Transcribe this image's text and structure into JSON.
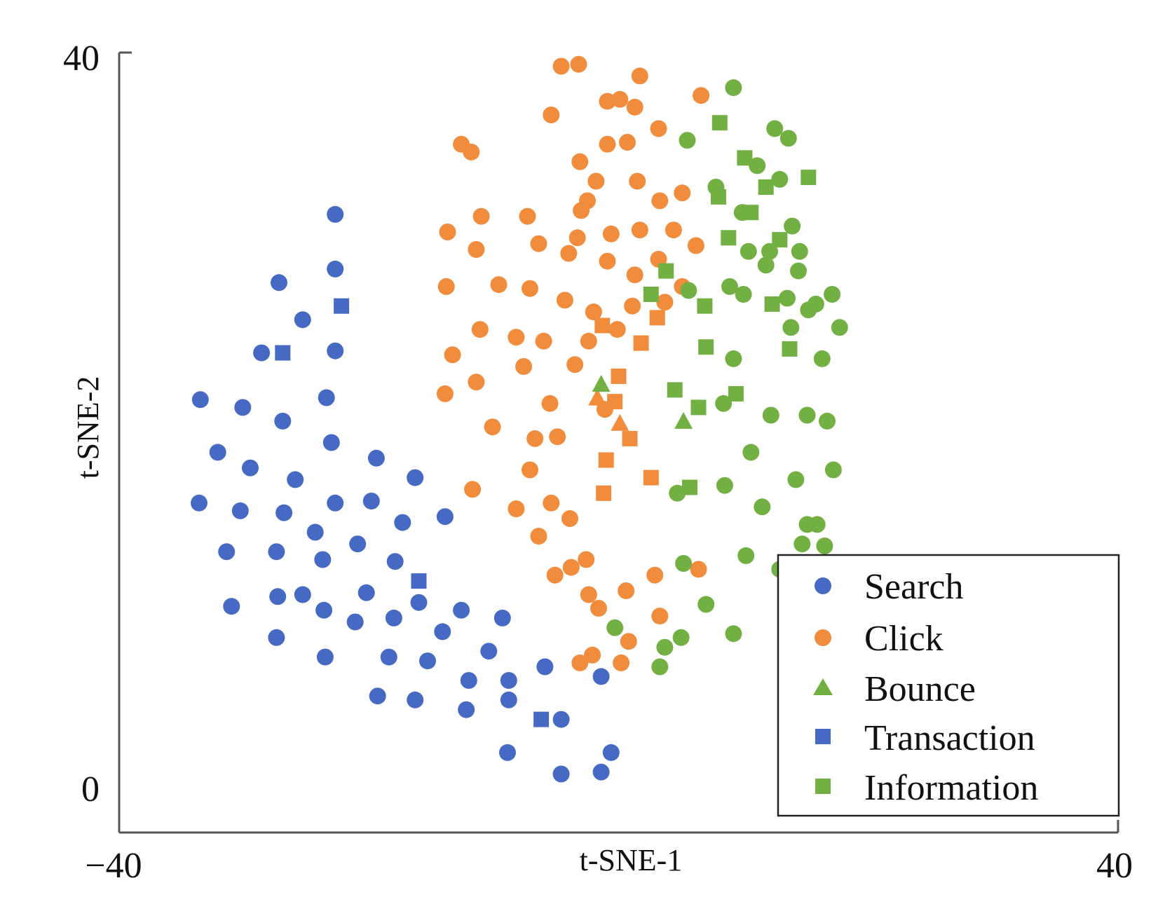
{
  "chart_data": {
    "type": "scatter",
    "xlabel": "t-SNE-1",
    "ylabel": "t-SNE-2",
    "xlim": [
      -40,
      40
    ],
    "ylim": [
      0,
      40
    ],
    "x_ticks": [
      "−40",
      "40"
    ],
    "y_ticks": [
      "40",
      "0"
    ],
    "legend_position": "bottom-right",
    "legend": [
      "Search",
      "Click",
      "Bounce",
      "Transaction",
      "Information"
    ],
    "colors": {
      "blue": "#4669c4",
      "orange": "#f08c3c",
      "green": "#72b043"
    },
    "series": [
      {
        "name": "Search",
        "marker": "circle",
        "color": "#4669c4",
        "points": [
          [
            -22.7,
            31.7
          ],
          [
            -27.2,
            28.2
          ],
          [
            -22.7,
            28.9
          ],
          [
            -25.3,
            26.3
          ],
          [
            -28.6,
            24.6
          ],
          [
            -22.7,
            24.7
          ],
          [
            -33.5,
            22.2
          ],
          [
            -23.4,
            22.3
          ],
          [
            -30.1,
            21.8
          ],
          [
            -26.9,
            21.1
          ],
          [
            -32.1,
            19.5
          ],
          [
            -23.0,
            20.0
          ],
          [
            -19.4,
            19.2
          ],
          [
            -29.5,
            18.7
          ],
          [
            -25.9,
            18.1
          ],
          [
            -16.3,
            18.2
          ],
          [
            -33.6,
            16.9
          ],
          [
            -30.3,
            16.5
          ],
          [
            -26.8,
            16.4
          ],
          [
            -22.7,
            16.9
          ],
          [
            -19.8,
            17.0
          ],
          [
            -13.9,
            16.2
          ],
          [
            -17.3,
            15.9
          ],
          [
            -24.3,
            15.4
          ],
          [
            -20.9,
            14.8
          ],
          [
            -31.4,
            14.4
          ],
          [
            -27.4,
            14.4
          ],
          [
            -23.7,
            14.0
          ],
          [
            -17.9,
            13.9
          ],
          [
            -25.3,
            12.2
          ],
          [
            -20.2,
            12.3
          ],
          [
            -27.3,
            12.1
          ],
          [
            -31.0,
            11.6
          ],
          [
            -16.0,
            11.8
          ],
          [
            -12.6,
            11.4
          ],
          [
            -9.3,
            11.0
          ],
          [
            -23.6,
            11.4
          ],
          [
            -18.0,
            11.0
          ],
          [
            -21.1,
            10.8
          ],
          [
            -27.4,
            10.0
          ],
          [
            -14.1,
            10.3
          ],
          [
            -10.4,
            9.3
          ],
          [
            -23.5,
            9.0
          ],
          [
            -18.4,
            9.0
          ],
          [
            -15.3,
            8.8
          ],
          [
            -5.9,
            8.5
          ],
          [
            -12.0,
            7.8
          ],
          [
            -8.8,
            7.8
          ],
          [
            -1.4,
            8.0
          ],
          [
            -19.3,
            7.0
          ],
          [
            -16.3,
            6.8
          ],
          [
            -12.2,
            6.3
          ],
          [
            -8.8,
            6.8
          ],
          [
            -4.6,
            5.8
          ],
          [
            -8.9,
            4.1
          ],
          [
            -4.6,
            3.0
          ],
          [
            -0.6,
            4.1
          ],
          [
            -1.4,
            3.1
          ]
        ]
      },
      {
        "name": "Click",
        "marker": "circle",
        "color": "#f08c3c",
        "points": [
          [
            -4.6,
            39.3
          ],
          [
            -3.2,
            39.4
          ],
          [
            1.7,
            38.8
          ],
          [
            0.1,
            37.6
          ],
          [
            -0.9,
            37.5
          ],
          [
            1.3,
            37.2
          ],
          [
            6.6,
            37.8
          ],
          [
            3.2,
            36.1
          ],
          [
            -11.8,
            34.9
          ],
          [
            -3.1,
            34.4
          ],
          [
            -0.9,
            35.3
          ],
          [
            0.7,
            35.4
          ],
          [
            -12.6,
            35.3
          ],
          [
            -5.4,
            36.8
          ],
          [
            -1.8,
            33.4
          ],
          [
            1.5,
            33.4
          ],
          [
            5.1,
            32.8
          ],
          [
            -2.5,
            32.4
          ],
          [
            3.3,
            32.4
          ],
          [
            -11.0,
            31.6
          ],
          [
            -7.3,
            31.6
          ],
          [
            -3.0,
            31.9
          ],
          [
            -0.6,
            30.7
          ],
          [
            1.7,
            30.9
          ],
          [
            4.4,
            30.9
          ],
          [
            6.2,
            30.1
          ],
          [
            -13.7,
            30.8
          ],
          [
            -3.3,
            30.5
          ],
          [
            -6.4,
            30.2
          ],
          [
            -11.4,
            29.9
          ],
          [
            -4.0,
            29.7
          ],
          [
            -0.9,
            29.3
          ],
          [
            1.3,
            28.6
          ],
          [
            3.2,
            29.4
          ],
          [
            5.1,
            28.0
          ],
          [
            -13.8,
            28.0
          ],
          [
            -9.6,
            28.1
          ],
          [
            -7.1,
            27.9
          ],
          [
            -4.3,
            27.3
          ],
          [
            -2.0,
            26.7
          ],
          [
            1.1,
            27.0
          ],
          [
            3.7,
            27.2
          ],
          [
            -0.1,
            25.8
          ],
          [
            -11.1,
            25.8
          ],
          [
            -8.2,
            25.4
          ],
          [
            -6.0,
            25.2
          ],
          [
            -2.4,
            25.2
          ],
          [
            -13.3,
            24.5
          ],
          [
            -3.5,
            24.0
          ],
          [
            -7.6,
            23.9
          ],
          [
            -11.4,
            23.1
          ],
          [
            -13.9,
            22.5
          ],
          [
            -5.5,
            22.0
          ],
          [
            -1.1,
            21.7
          ],
          [
            -10.1,
            20.8
          ],
          [
            -6.7,
            20.2
          ],
          [
            -4.9,
            20.3
          ],
          [
            -7.1,
            18.6
          ],
          [
            -11.7,
            17.6
          ],
          [
            -5.4,
            16.9
          ],
          [
            -8.2,
            16.6
          ],
          [
            -3.9,
            16.1
          ],
          [
            -6.4,
            15.2
          ],
          [
            -2.6,
            14.0
          ],
          [
            -3.8,
            13.6
          ],
          [
            -5.1,
            13.2
          ],
          [
            -2.4,
            12.2
          ],
          [
            2.9,
            13.2
          ],
          [
            6.4,
            13.5
          ],
          [
            0.6,
            12.4
          ],
          [
            -1.6,
            11.5
          ],
          [
            3.3,
            11.1
          ],
          [
            0.8,
            9.8
          ],
          [
            -2.1,
            9.1
          ],
          [
            -3.1,
            8.7
          ],
          [
            0.2,
            8.7
          ]
        ]
      },
      {
        "name": "Bounce",
        "marker": "triangle",
        "color": "#f08c3c",
        "points": [
          [
            -1.7,
            22.3
          ],
          [
            0.1,
            21.0
          ]
        ]
      },
      {
        "name": "Bounce",
        "marker": "triangle",
        "color": "#72b043",
        "points": [
          [
            -1.4,
            23.0
          ],
          [
            5.2,
            21.1
          ]
        ]
      },
      {
        "name": "Transaction",
        "marker": "square",
        "color": "#4669c4",
        "points": [
          [
            -22.2,
            27.0
          ],
          [
            -26.9,
            24.6
          ],
          [
            -16.0,
            12.9
          ],
          [
            -6.2,
            5.8
          ]
        ]
      },
      {
        "name": "Transaction",
        "marker": "square",
        "color": "#f08c3c",
        "points": [
          [
            3.1,
            26.4
          ],
          [
            -1.3,
            26.0
          ],
          [
            1.8,
            25.1
          ],
          [
            0.0,
            23.4
          ],
          [
            -0.3,
            22.1
          ],
          [
            0.9,
            20.2
          ],
          [
            -1.0,
            19.1
          ],
          [
            2.6,
            18.2
          ],
          [
            -1.2,
            17.4
          ]
        ]
      },
      {
        "name": "Information",
        "marker": "square",
        "color": "#72b043",
        "points": [
          [
            8.1,
            36.4
          ],
          [
            10.1,
            34.6
          ],
          [
            11.8,
            33.1
          ],
          [
            10.6,
            31.8
          ],
          [
            15.2,
            33.6
          ],
          [
            8.0,
            32.6
          ],
          [
            8.8,
            30.5
          ],
          [
            12.9,
            30.4
          ],
          [
            3.8,
            28.8
          ],
          [
            2.6,
            27.6
          ],
          [
            12.3,
            27.1
          ],
          [
            6.9,
            27.0
          ],
          [
            7.0,
            24.9
          ],
          [
            13.7,
            24.8
          ],
          [
            4.5,
            22.7
          ],
          [
            9.4,
            22.5
          ],
          [
            6.4,
            21.8
          ],
          [
            5.7,
            17.7
          ]
        ]
      },
      {
        "name": "Information",
        "marker": "circle",
        "color": "#72b043",
        "points": [
          [
            9.2,
            38.2
          ],
          [
            12.5,
            36.1
          ],
          [
            13.6,
            35.6
          ],
          [
            5.5,
            35.5
          ],
          [
            11.1,
            34.2
          ],
          [
            12.9,
            33.5
          ],
          [
            7.8,
            33.1
          ],
          [
            9.9,
            31.8
          ],
          [
            13.9,
            31.1
          ],
          [
            10.4,
            29.8
          ],
          [
            11.8,
            29.1
          ],
          [
            14.5,
            29.8
          ],
          [
            13.5,
            27.4
          ],
          [
            15.8,
            27.1
          ],
          [
            5.6,
            27.8
          ],
          [
            8.9,
            28.0
          ],
          [
            12.1,
            29.8
          ],
          [
            14.4,
            28.8
          ],
          [
            10.0,
            27.6
          ],
          [
            17.1,
            27.6
          ],
          [
            15.2,
            26.8
          ],
          [
            17.7,
            25.9
          ],
          [
            13.8,
            25.9
          ],
          [
            9.2,
            24.3
          ],
          [
            16.3,
            24.3
          ],
          [
            8.4,
            22.0
          ],
          [
            12.2,
            21.4
          ],
          [
            10.6,
            19.5
          ],
          [
            15.1,
            21.4
          ],
          [
            16.7,
            21.1
          ],
          [
            14.2,
            18.1
          ],
          [
            17.2,
            18.6
          ],
          [
            4.7,
            17.4
          ],
          [
            8.5,
            17.8
          ],
          [
            11.5,
            16.7
          ],
          [
            15.1,
            15.8
          ],
          [
            14.7,
            14.8
          ],
          [
            10.2,
            14.2
          ],
          [
            5.2,
            13.8
          ],
          [
            7.0,
            11.7
          ],
          [
            9.2,
            10.2
          ],
          [
            16.5,
            14.7
          ],
          [
            12.9,
            13.5
          ],
          [
            16.9,
            12.8
          ],
          [
            15.9,
            15.8
          ],
          [
            3.7,
            9.5
          ],
          [
            5.0,
            10.0
          ],
          [
            3.3,
            8.5
          ],
          [
            -0.3,
            10.5
          ]
        ]
      }
    ]
  }
}
